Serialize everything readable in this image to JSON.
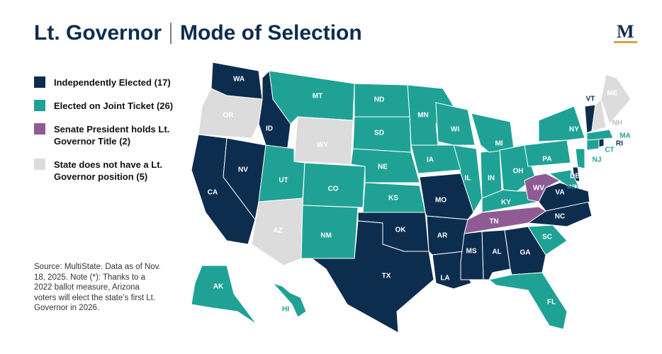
{
  "header": {
    "title": "Lt. Governor",
    "subtitle": "Mode of Selection",
    "logo": "M"
  },
  "legend": [
    {
      "label": "Independently Elected (17)",
      "color": "#0d2d4f",
      "states": [
        "AL",
        "AR",
        "CA",
        "DE",
        "GA",
        "ID",
        "LA",
        "MS",
        "MO",
        "NV",
        "NC",
        "OK",
        "RI",
        "TX",
        "VT",
        "VA",
        "WA"
      ]
    },
    {
      "label": "Elected on Joint Ticket (26)",
      "color": "#1fa295",
      "states": [
        "AK",
        "CO",
        "CT",
        "FL",
        "HI",
        "IL",
        "IN",
        "IA",
        "KS",
        "KY",
        "MD",
        "MA",
        "MI",
        "MN",
        "MT",
        "NE",
        "NJ",
        "NM",
        "NY",
        "ND",
        "OH",
        "PA",
        "SC",
        "SD",
        "UT",
        "WI"
      ]
    },
    {
      "label": "Senate President holds Lt. Governor Title (2)",
      "color": "#8e5b94",
      "states": [
        "TN",
        "WV"
      ]
    },
    {
      "label": "State does not have a Lt. Governor position (5)",
      "color": "#dcdcdc",
      "states": [
        "AZ",
        "ME",
        "NH",
        "OR",
        "WY"
      ]
    }
  ],
  "source": "Source: MultiState. Data as of Nov. 18, 2025. Note (*): Thanks to a 2022 ballot measure, Arizona voters will elect the state’s first Lt. Governor in 2026."
}
